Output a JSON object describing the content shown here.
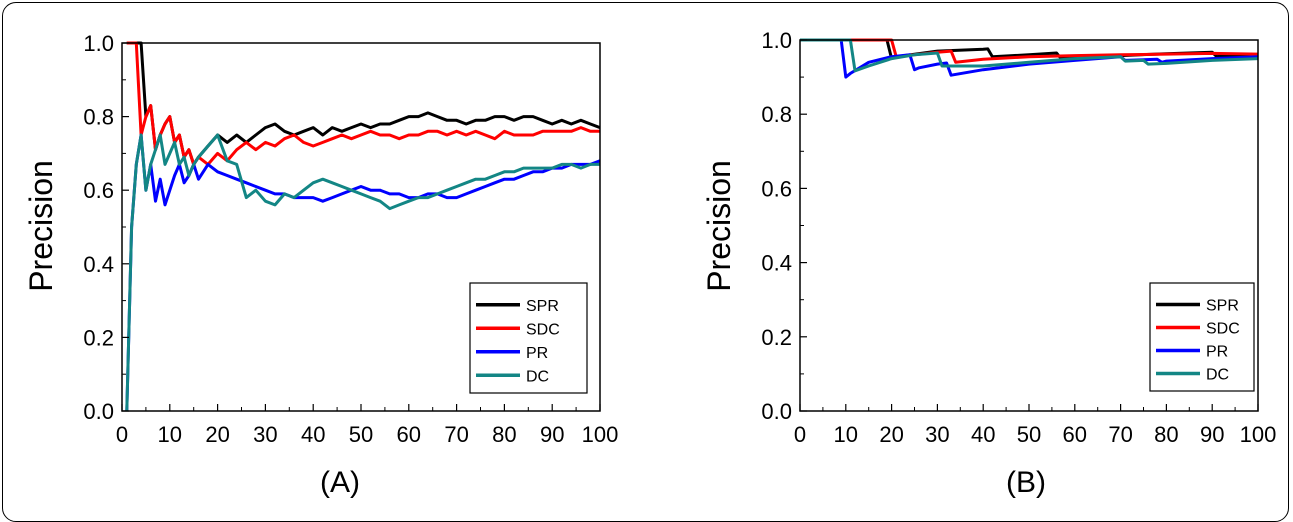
{
  "chart_data": [
    {
      "type": "line",
      "panel_label": "(A)",
      "ylabel": "Precision",
      "xlabel": "",
      "xlim": [
        0,
        100
      ],
      "ylim": [
        0,
        1.0
      ],
      "xticks": [
        0,
        10,
        20,
        30,
        40,
        50,
        60,
        70,
        80,
        90,
        100
      ],
      "yticks": [
        0.0,
        0.2,
        0.4,
        0.6,
        0.8,
        1.0
      ],
      "xtick_labels": [
        "0",
        "10",
        "20",
        "30",
        "40",
        "50",
        "60",
        "70",
        "80",
        "90",
        "100"
      ],
      "ytick_labels": [
        "0.0",
        "0.2",
        "0.4",
        "0.6",
        "0.8",
        "1.0"
      ],
      "grid": false,
      "legend_position": "bottom-right",
      "series": [
        {
          "name": "SPR",
          "color": "#000000",
          "x": [
            1,
            2,
            3,
            4,
            5,
            6,
            7,
            8,
            9,
            10,
            11,
            12,
            13,
            14,
            15,
            16,
            18,
            20,
            22,
            24,
            26,
            28,
            30,
            32,
            34,
            36,
            38,
            40,
            42,
            44,
            46,
            48,
            50,
            52,
            54,
            56,
            58,
            60,
            62,
            64,
            66,
            68,
            70,
            72,
            74,
            76,
            78,
            80,
            82,
            84,
            86,
            88,
            90,
            92,
            94,
            96,
            98,
            100
          ],
          "values": [
            1.0,
            1.0,
            1.0,
            1.0,
            0.8,
            0.83,
            0.71,
            0.75,
            0.78,
            0.8,
            0.73,
            0.75,
            0.69,
            0.71,
            0.67,
            0.69,
            0.72,
            0.75,
            0.73,
            0.75,
            0.73,
            0.75,
            0.77,
            0.78,
            0.76,
            0.75,
            0.76,
            0.77,
            0.75,
            0.77,
            0.76,
            0.77,
            0.78,
            0.77,
            0.78,
            0.78,
            0.79,
            0.8,
            0.8,
            0.81,
            0.8,
            0.79,
            0.79,
            0.78,
            0.79,
            0.79,
            0.8,
            0.8,
            0.79,
            0.8,
            0.8,
            0.79,
            0.78,
            0.79,
            0.78,
            0.79,
            0.78,
            0.77
          ]
        },
        {
          "name": "SDC",
          "color": "#ff0000",
          "x": [
            1,
            2,
            3,
            4,
            5,
            6,
            7,
            8,
            9,
            10,
            11,
            12,
            13,
            14,
            15,
            16,
            18,
            20,
            22,
            24,
            26,
            28,
            30,
            32,
            34,
            36,
            38,
            40,
            42,
            44,
            46,
            48,
            50,
            52,
            54,
            56,
            58,
            60,
            62,
            64,
            66,
            68,
            70,
            72,
            74,
            76,
            78,
            80,
            82,
            84,
            86,
            88,
            90,
            92,
            94,
            96,
            98,
            100
          ],
          "values": [
            1.0,
            1.0,
            1.0,
            0.75,
            0.8,
            0.83,
            0.71,
            0.75,
            0.78,
            0.8,
            0.73,
            0.75,
            0.69,
            0.71,
            0.67,
            0.69,
            0.67,
            0.7,
            0.68,
            0.71,
            0.73,
            0.71,
            0.73,
            0.72,
            0.74,
            0.75,
            0.73,
            0.72,
            0.73,
            0.74,
            0.75,
            0.74,
            0.75,
            0.76,
            0.75,
            0.75,
            0.74,
            0.75,
            0.75,
            0.76,
            0.76,
            0.75,
            0.76,
            0.75,
            0.76,
            0.75,
            0.74,
            0.76,
            0.75,
            0.75,
            0.75,
            0.76,
            0.76,
            0.76,
            0.76,
            0.77,
            0.76,
            0.76
          ]
        },
        {
          "name": "PR",
          "color": "#0000ff",
          "x": [
            1,
            2,
            3,
            4,
            5,
            6,
            7,
            8,
            9,
            10,
            11,
            12,
            13,
            14,
            15,
            16,
            18,
            20,
            22,
            24,
            26,
            28,
            30,
            32,
            34,
            36,
            38,
            40,
            42,
            44,
            46,
            48,
            50,
            52,
            54,
            56,
            58,
            60,
            62,
            64,
            66,
            68,
            70,
            72,
            74,
            76,
            78,
            80,
            82,
            84,
            86,
            88,
            90,
            92,
            94,
            96,
            98,
            100
          ],
          "values": [
            0.0,
            0.5,
            0.67,
            0.75,
            0.6,
            0.67,
            0.57,
            0.63,
            0.56,
            0.6,
            0.64,
            0.67,
            0.62,
            0.64,
            0.67,
            0.63,
            0.67,
            0.65,
            0.64,
            0.63,
            0.62,
            0.61,
            0.6,
            0.59,
            0.59,
            0.58,
            0.58,
            0.58,
            0.57,
            0.58,
            0.59,
            0.6,
            0.61,
            0.6,
            0.6,
            0.59,
            0.59,
            0.58,
            0.58,
            0.59,
            0.59,
            0.58,
            0.58,
            0.59,
            0.6,
            0.61,
            0.62,
            0.63,
            0.63,
            0.64,
            0.65,
            0.65,
            0.66,
            0.66,
            0.67,
            0.67,
            0.67,
            0.68
          ]
        },
        {
          "name": "DC",
          "color": "#138685",
          "x": [
            1,
            2,
            3,
            4,
            5,
            6,
            7,
            8,
            9,
            10,
            11,
            12,
            13,
            14,
            15,
            16,
            18,
            20,
            22,
            24,
            26,
            28,
            30,
            32,
            34,
            36,
            38,
            40,
            42,
            44,
            46,
            48,
            50,
            52,
            54,
            56,
            58,
            60,
            62,
            64,
            66,
            68,
            70,
            72,
            74,
            76,
            78,
            80,
            82,
            84,
            86,
            88,
            90,
            92,
            94,
            96,
            98,
            100
          ],
          "values": [
            0.0,
            0.5,
            0.67,
            0.75,
            0.6,
            0.67,
            0.71,
            0.75,
            0.67,
            0.7,
            0.73,
            0.67,
            0.69,
            0.64,
            0.67,
            0.69,
            0.72,
            0.75,
            0.68,
            0.67,
            0.58,
            0.6,
            0.57,
            0.56,
            0.59,
            0.58,
            0.6,
            0.62,
            0.63,
            0.62,
            0.61,
            0.6,
            0.59,
            0.58,
            0.57,
            0.55,
            0.56,
            0.57,
            0.58,
            0.58,
            0.59,
            0.6,
            0.61,
            0.62,
            0.63,
            0.63,
            0.64,
            0.65,
            0.65,
            0.66,
            0.66,
            0.66,
            0.66,
            0.67,
            0.67,
            0.66,
            0.67,
            0.67
          ]
        }
      ]
    },
    {
      "type": "line",
      "panel_label": "(B)",
      "ylabel": "Precision",
      "xlabel": "",
      "xlim": [
        0,
        100
      ],
      "ylim": [
        0,
        1.0
      ],
      "xticks": [
        0,
        10,
        20,
        30,
        40,
        50,
        60,
        70,
        80,
        90,
        100
      ],
      "yticks": [
        0.0,
        0.2,
        0.4,
        0.6,
        0.8,
        1.0
      ],
      "xtick_labels": [
        "0",
        "10",
        "20",
        "30",
        "40",
        "50",
        "60",
        "70",
        "80",
        "90",
        "100"
      ],
      "ytick_labels": [
        "0.0",
        "0.2",
        "0.4",
        "0.6",
        "0.8",
        "1.0"
      ],
      "grid": false,
      "legend_position": "bottom-right",
      "series": [
        {
          "name": "SPR",
          "color": "#000000",
          "x": [
            0,
            19,
            20,
            21,
            30,
            40,
            41,
            42,
            50,
            56,
            57,
            60,
            70,
            80,
            90,
            91,
            92,
            100
          ],
          "values": [
            1.0,
            1.0,
            0.95,
            0.955,
            0.97,
            0.975,
            0.976,
            0.955,
            0.96,
            0.965,
            0.95,
            0.952,
            0.958,
            0.963,
            0.967,
            0.955,
            0.957,
            0.96
          ]
        },
        {
          "name": "SDC",
          "color": "#ff0000",
          "x": [
            0,
            20,
            21,
            30,
            33,
            34,
            40,
            50,
            60,
            70,
            80,
            90,
            100
          ],
          "values": [
            1.0,
            1.0,
            0.955,
            0.967,
            0.97,
            0.94,
            0.948,
            0.955,
            0.958,
            0.96,
            0.962,
            0.964,
            0.962
          ]
        },
        {
          "name": "PR",
          "color": "#0000ff",
          "x": [
            0,
            9,
            10,
            11,
            15,
            20,
            24,
            25,
            26,
            30,
            32,
            33,
            40,
            50,
            60,
            70,
            71,
            78,
            79,
            80,
            90,
            100
          ],
          "values": [
            1.0,
            1.0,
            0.9,
            0.91,
            0.94,
            0.955,
            0.96,
            0.92,
            0.925,
            0.935,
            0.938,
            0.905,
            0.92,
            0.935,
            0.945,
            0.955,
            0.945,
            0.948,
            0.94,
            0.943,
            0.95,
            0.955
          ]
        },
        {
          "name": "DC",
          "color": "#138685",
          "x": [
            0,
            11,
            12,
            15,
            20,
            25,
            30,
            31,
            40,
            50,
            60,
            70,
            71,
            75,
            76,
            80,
            90,
            100
          ],
          "values": [
            1.0,
            1.0,
            0.917,
            0.93,
            0.95,
            0.96,
            0.965,
            0.93,
            0.93,
            0.94,
            0.95,
            0.955,
            0.943,
            0.945,
            0.935,
            0.937,
            0.945,
            0.95
          ]
        }
      ]
    }
  ]
}
